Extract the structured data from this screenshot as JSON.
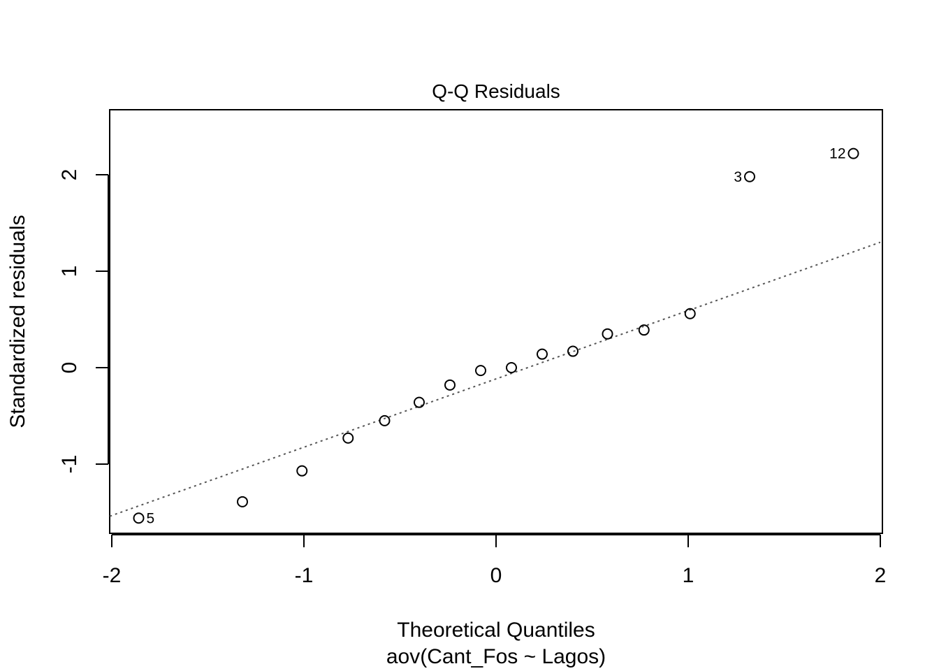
{
  "chart_data": {
    "type": "scatter",
    "title": "Q-Q Residuals",
    "xlabel": "Theoretical Quantiles",
    "sublabel": "aov(Cant_Fos ~ Lagos)",
    "ylabel": "Standardized residuals",
    "xlim": [
      -2,
      2
    ],
    "ylim": [
      -1.72,
      2.68
    ],
    "x_ticks": [
      -2,
      -1,
      0,
      1,
      2
    ],
    "x_tick_labels": [
      "-2",
      "-1",
      "0",
      "1",
      "2"
    ],
    "y_ticks": [
      -1,
      0,
      1,
      2
    ],
    "y_tick_labels": [
      "-1",
      "0",
      "1",
      "2"
    ],
    "grid": false,
    "legend": "none",
    "points": [
      {
        "x": -1.86,
        "y": -1.56,
        "label": "5"
      },
      {
        "x": -1.32,
        "y": -1.39,
        "label": ""
      },
      {
        "x": -1.01,
        "y": -1.07,
        "label": ""
      },
      {
        "x": -0.77,
        "y": -0.73,
        "label": ""
      },
      {
        "x": -0.58,
        "y": -0.55,
        "label": ""
      },
      {
        "x": -0.4,
        "y": -0.36,
        "label": ""
      },
      {
        "x": -0.24,
        "y": -0.18,
        "label": ""
      },
      {
        "x": -0.08,
        "y": -0.03,
        "label": ""
      },
      {
        "x": 0.08,
        "y": 0.0,
        "label": ""
      },
      {
        "x": 0.24,
        "y": 0.14,
        "label": ""
      },
      {
        "x": 0.4,
        "y": 0.17,
        "label": ""
      },
      {
        "x": 0.58,
        "y": 0.35,
        "label": ""
      },
      {
        "x": 0.77,
        "y": 0.39,
        "label": ""
      },
      {
        "x": 1.01,
        "y": 0.56,
        "label": ""
      },
      {
        "x": 1.32,
        "y": 1.98,
        "label": "3"
      },
      {
        "x": 1.86,
        "y": 2.22,
        "label": "12"
      }
    ],
    "reference_line": {
      "x": [
        -2.01,
        2.0
      ],
      "y": [
        -1.54,
        1.3
      ],
      "style": "dotted",
      "color": "#555555"
    }
  }
}
